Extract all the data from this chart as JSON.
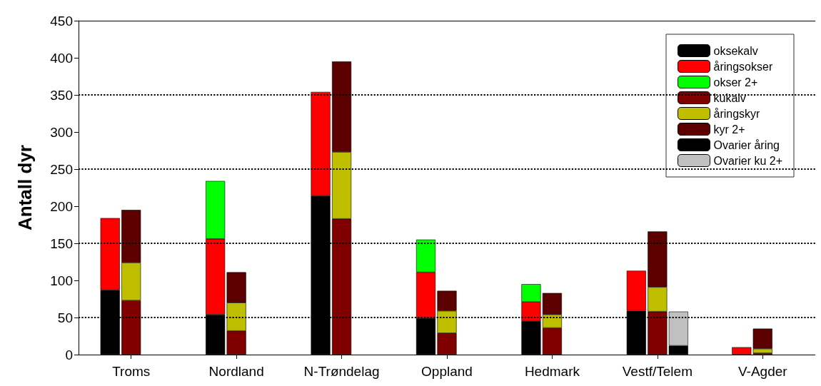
{
  "chart_data": {
    "type": "bar",
    "ylabel": "Antall dyr",
    "stacked": true,
    "categories": [
      null,
      null,
      "Troms",
      null,
      null,
      null,
      null,
      "Nordland",
      null,
      null,
      null,
      null,
      "N-Trøndelag",
      null,
      null,
      null,
      null,
      "Oppland",
      null,
      null,
      null,
      null,
      "Hedmark",
      null,
      null,
      null,
      null,
      "Vestf/Telem",
      null,
      null,
      null,
      null,
      "V-Agder",
      null,
      null
    ],
    "series": [
      {
        "name": "oksekalv",
        "color": "#000000",
        "values": [
          null,
          87,
          null,
          null,
          null,
          null,
          54,
          null,
          null,
          null,
          null,
          214,
          null,
          null,
          null,
          null,
          49,
          null,
          null,
          null,
          null,
          45,
          null,
          null,
          null,
          null,
          59,
          null,
          null,
          null,
          null,
          null,
          null,
          null,
          null
        ]
      },
      {
        "name": "åringsokser",
        "color": "#ff0000",
        "values": [
          null,
          97,
          null,
          null,
          null,
          null,
          102,
          null,
          null,
          null,
          null,
          140,
          null,
          null,
          null,
          null,
          62,
          null,
          null,
          null,
          null,
          26,
          null,
          null,
          null,
          null,
          54,
          null,
          null,
          null,
          null,
          10,
          null,
          null,
          null
        ]
      },
      {
        "name": "okser 2+",
        "color": "#00ff00",
        "values": [
          null,
          null,
          null,
          null,
          null,
          null,
          78,
          null,
          null,
          null,
          null,
          null,
          null,
          null,
          null,
          null,
          44,
          null,
          null,
          null,
          null,
          24,
          null,
          null,
          null,
          null,
          null,
          null,
          null,
          null,
          null,
          null,
          null,
          null,
          null
        ]
      },
      {
        "name": "kukalv",
        "color": "#800000",
        "values": [
          null,
          null,
          73,
          null,
          null,
          null,
          null,
          32,
          null,
          null,
          null,
          null,
          183,
          null,
          null,
          null,
          null,
          29,
          null,
          null,
          null,
          null,
          36,
          null,
          null,
          null,
          null,
          58,
          null,
          null,
          null,
          null,
          2,
          null,
          null
        ]
      },
      {
        "name": "åringskyr",
        "color": "#bfbf00",
        "values": [
          null,
          null,
          51,
          null,
          null,
          null,
          null,
          38,
          null,
          null,
          null,
          null,
          90,
          null,
          null,
          null,
          null,
          30,
          null,
          null,
          null,
          null,
          18,
          null,
          null,
          null,
          null,
          33,
          null,
          null,
          null,
          null,
          6,
          null,
          null
        ]
      },
      {
        "name": "kyr 2+",
        "color": "#5c0000",
        "values": [
          null,
          null,
          71,
          null,
          null,
          null,
          null,
          41,
          null,
          null,
          null,
          null,
          122,
          null,
          null,
          null,
          null,
          27,
          null,
          null,
          null,
          null,
          29,
          null,
          null,
          null,
          null,
          75,
          null,
          null,
          null,
          null,
          27,
          null,
          null
        ]
      },
      {
        "name": "Ovarier åring",
        "color": "#000000",
        "values": [
          null,
          null,
          null,
          null,
          null,
          null,
          null,
          null,
          null,
          null,
          null,
          null,
          null,
          null,
          null,
          null,
          null,
          null,
          null,
          null,
          null,
          null,
          null,
          null,
          null,
          null,
          null,
          null,
          12,
          null,
          null,
          null,
          null,
          null,
          null
        ]
      },
      {
        "name": "Ovarier ku 2+",
        "color": "#c0c0c0",
        "values": [
          null,
          null,
          null,
          null,
          null,
          null,
          null,
          null,
          null,
          null,
          null,
          null,
          null,
          null,
          null,
          null,
          null,
          null,
          null,
          null,
          null,
          null,
          null,
          null,
          null,
          null,
          null,
          null,
          46,
          null,
          null,
          null,
          null,
          null,
          null
        ]
      }
    ],
    "ylim": [
      0,
      450
    ],
    "yticks": [
      0,
      50,
      100,
      150,
      200,
      250,
      300,
      350,
      400,
      450
    ],
    "ref_lines": [
      {
        "axis": "y",
        "value": 50,
        "line_style": "dotted"
      },
      {
        "axis": "y",
        "value": 150,
        "line_style": "dotted"
      },
      {
        "axis": "y",
        "value": 250,
        "line_style": "dotted"
      },
      {
        "axis": "y",
        "value": 350,
        "line_style": "dotted"
      }
    ],
    "grid": false,
    "legend": "top right"
  }
}
